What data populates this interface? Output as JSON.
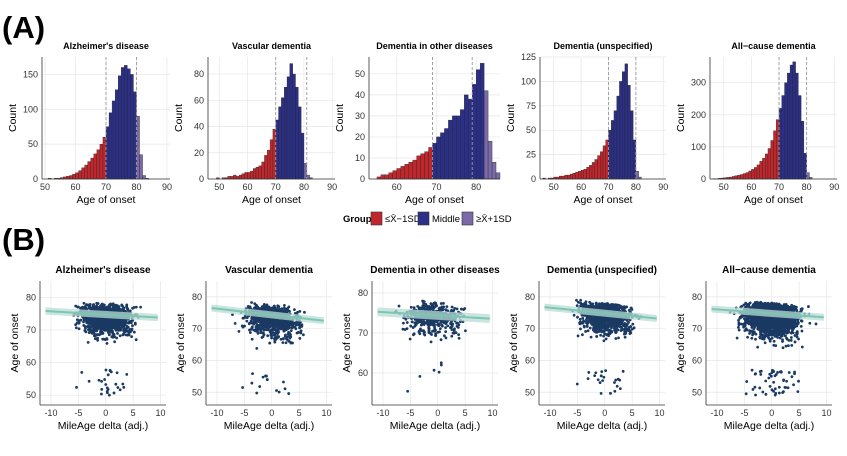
{
  "figure": {
    "panel_a_label": "(A)",
    "panel_b_label": "(B)",
    "legend": {
      "title": "Group",
      "items": [
        {
          "label": "≤X̄−1SD",
          "color": "#c0272d"
        },
        {
          "label": "Middle",
          "color": "#2b2f86"
        },
        {
          "label": "≥X̄+1SD",
          "color": "#7a6aa8"
        }
      ]
    }
  },
  "chart_data": [
    {
      "type": "bar",
      "panel": "A",
      "title": "Alzheimer's disease",
      "xlabel": "Age of onset",
      "ylabel": "Count",
      "xlim": [
        49,
        91
      ],
      "ylim": [
        0,
        175
      ],
      "xticks": [
        50,
        60,
        70,
        80,
        90
      ],
      "yticks": [
        0,
        50,
        100,
        150
      ],
      "bin_width": 1,
      "bin_start": 51,
      "mean_line": 70,
      "sd_line": 80,
      "values": [
        1,
        0,
        1,
        1,
        2,
        3,
        4,
        5,
        7,
        9,
        12,
        16,
        20,
        25,
        30,
        36,
        42,
        50,
        60,
        75,
        95,
        112,
        128,
        148,
        160,
        163,
        158,
        150,
        125,
        90,
        35,
        5,
        1
      ],
      "groups": [
        "low",
        "low",
        "low",
        "low",
        "low",
        "low",
        "low",
        "low",
        "low",
        "low",
        "low",
        "low",
        "low",
        "low",
        "low",
        "low",
        "low",
        "low",
        "low",
        "mid",
        "mid",
        "mid",
        "mid",
        "mid",
        "mid",
        "mid",
        "mid",
        "mid",
        "mid",
        "high",
        "high",
        "high",
        "high"
      ],
      "grid": true
    },
    {
      "type": "bar",
      "panel": "A",
      "title": "Vascular dementia",
      "xlabel": "Age of onset",
      "ylabel": "Count",
      "xlim": [
        46,
        91
      ],
      "ylim": [
        0,
        93
      ],
      "xticks": [
        50,
        60,
        70,
        80,
        90
      ],
      "yticks": [
        0,
        20,
        40,
        60,
        80
      ],
      "bin_width": 1,
      "bin_start": 49,
      "mean_line": 70,
      "sd_line": 81,
      "values": [
        1,
        0,
        1,
        1,
        2,
        2,
        3,
        2,
        3,
        4,
        5,
        5,
        6,
        8,
        9,
        10,
        13,
        18,
        22,
        30,
        38,
        45,
        55,
        62,
        70,
        78,
        88,
        80,
        70,
        55,
        35,
        12,
        3,
        1
      ],
      "groups": [
        "low",
        "low",
        "low",
        "low",
        "low",
        "low",
        "low",
        "low",
        "low",
        "low",
        "low",
        "low",
        "low",
        "low",
        "low",
        "low",
        "low",
        "low",
        "low",
        "low",
        "low",
        "mid",
        "mid",
        "mid",
        "mid",
        "mid",
        "mid",
        "mid",
        "mid",
        "mid",
        "mid",
        "high",
        "high",
        "high"
      ],
      "grid": true
    },
    {
      "type": "bar",
      "panel": "A",
      "title": "Dementia in other diseases",
      "xlabel": "Age of onset",
      "ylabel": "Count",
      "xlim": [
        53,
        86
      ],
      "ylim": [
        0,
        58
      ],
      "xticks": [
        60,
        70,
        80
      ],
      "yticks": [
        0,
        10,
        20,
        30,
        40,
        50
      ],
      "bin_width": 1,
      "bin_start": 55,
      "mean_line": 69,
      "sd_line": 79,
      "values": [
        1,
        2,
        2,
        3,
        4,
        5,
        6,
        7,
        8,
        9,
        11,
        12,
        13,
        15,
        17,
        20,
        22,
        24,
        28,
        30,
        30,
        33,
        40,
        38,
        45,
        52,
        55,
        42,
        18,
        8,
        3
      ],
      "groups": [
        "low",
        "low",
        "low",
        "low",
        "low",
        "low",
        "low",
        "low",
        "low",
        "low",
        "low",
        "low",
        "low",
        "low",
        "mid",
        "mid",
        "mid",
        "mid",
        "mid",
        "mid",
        "mid",
        "mid",
        "mid",
        "mid",
        "mid",
        "mid",
        "mid",
        "high",
        "high",
        "high",
        "high"
      ],
      "grid": true
    },
    {
      "type": "bar",
      "panel": "A",
      "title": "Dementia (unspecified)",
      "xlabel": "Age of onset",
      "ylabel": "Count",
      "xlim": [
        45,
        91
      ],
      "ylim": [
        0,
        125
      ],
      "xticks": [
        50,
        60,
        70,
        80,
        90
      ],
      "yticks": [
        0,
        25,
        50,
        75,
        100,
        125
      ],
      "bin_width": 1,
      "bin_start": 46,
      "mean_line": 70,
      "sd_line": 80,
      "values": [
        1,
        0,
        1,
        1,
        2,
        2,
        3,
        3,
        4,
        4,
        5,
        6,
        7,
        8,
        9,
        10,
        12,
        14,
        17,
        20,
        24,
        28,
        34,
        40,
        50,
        60,
        70,
        85,
        100,
        110,
        118,
        96,
        70,
        40,
        8,
        2
      ],
      "groups": [
        "low",
        "low",
        "low",
        "low",
        "low",
        "low",
        "low",
        "low",
        "low",
        "low",
        "low",
        "low",
        "low",
        "low",
        "low",
        "low",
        "low",
        "low",
        "low",
        "low",
        "low",
        "low",
        "low",
        "low",
        "mid",
        "mid",
        "mid",
        "mid",
        "mid",
        "mid",
        "mid",
        "mid",
        "mid",
        "mid",
        "high",
        "high"
      ],
      "grid": true
    },
    {
      "type": "bar",
      "panel": "A",
      "title": "All−cause dementia",
      "xlabel": "Age of onset",
      "ylabel": "Count",
      "xlim": [
        45,
        91
      ],
      "ylim": [
        0,
        380
      ],
      "xticks": [
        50,
        60,
        70,
        80,
        90
      ],
      "yticks": [
        0,
        100,
        200,
        300
      ],
      "bin_width": 1,
      "bin_start": 46,
      "mean_line": 70,
      "sd_line": 80,
      "values": [
        1,
        1,
        2,
        3,
        4,
        5,
        6,
        8,
        10,
        12,
        14,
        17,
        20,
        25,
        30,
        36,
        44,
        55,
        65,
        78,
        95,
        120,
        150,
        185,
        220,
        260,
        300,
        330,
        355,
        365,
        330,
        260,
        180,
        80,
        20,
        5
      ],
      "groups": [
        "low",
        "low",
        "low",
        "low",
        "low",
        "low",
        "low",
        "low",
        "low",
        "low",
        "low",
        "low",
        "low",
        "low",
        "low",
        "low",
        "low",
        "low",
        "low",
        "low",
        "low",
        "low",
        "low",
        "low",
        "mid",
        "mid",
        "mid",
        "mid",
        "mid",
        "mid",
        "mid",
        "mid",
        "mid",
        "mid",
        "high",
        "high"
      ],
      "grid": true
    },
    {
      "type": "scatter",
      "panel": "B",
      "title": "Alzheimer's disease",
      "xlabel": "MileAge delta (adj.)",
      "ylabel": "Age of onset",
      "xlim": [
        -12,
        11
      ],
      "ylim": [
        47,
        85
      ],
      "xticks": [
        -10,
        -5,
        0,
        5,
        10
      ],
      "yticks": [
        50,
        60,
        70,
        80
      ],
      "n_points": 1400,
      "x_mean": 0,
      "x_sd": 3.6,
      "y_center": 77,
      "y_spread": 6,
      "trend": [
        [
          -11,
          75.8
        ],
        [
          9.5,
          73.8
        ]
      ],
      "grid": true
    },
    {
      "type": "scatter",
      "panel": "B",
      "title": "Vascular dementia",
      "xlabel": "MileAge delta (adj.)",
      "ylabel": "Age of onset",
      "xlim": [
        -12,
        11
      ],
      "ylim": [
        46,
        85
      ],
      "xticks": [
        -10,
        -5,
        0,
        5,
        10
      ],
      "yticks": [
        50,
        60,
        70,
        80
      ],
      "n_points": 850,
      "x_mean": 0,
      "x_sd": 3.8,
      "y_center": 76,
      "y_spread": 7,
      "trend": [
        [
          -11,
          76.5
        ],
        [
          9.5,
          72.5
        ]
      ],
      "grid": true
    },
    {
      "type": "scatter",
      "panel": "B",
      "title": "Dementia in other diseases",
      "xlabel": "MileAge delta (adj.)",
      "ylabel": "Age of onset",
      "xlim": [
        -12,
        11
      ],
      "ylim": [
        52,
        83
      ],
      "xticks": [
        -10,
        -5,
        0,
        5,
        10
      ],
      "yticks": [
        60,
        70,
        80
      ],
      "n_points": 500,
      "x_mean": -1,
      "x_sd": 3.8,
      "y_center": 75,
      "y_spread": 5,
      "trend": [
        [
          -11,
          75.3
        ],
        [
          9.5,
          73.6
        ]
      ],
      "grid": true
    },
    {
      "type": "scatter",
      "panel": "B",
      "title": "Dementia (unspecified)",
      "xlabel": "MileAge delta (adj.)",
      "ylabel": "Age of onset",
      "xlim": [
        -12,
        11
      ],
      "ylim": [
        46,
        85
      ],
      "xticks": [
        -10,
        -5,
        0,
        5,
        10
      ],
      "yticks": [
        50,
        60,
        70,
        80
      ],
      "n_points": 1100,
      "x_mean": 0,
      "x_sd": 3.6,
      "y_center": 77,
      "y_spread": 6,
      "trend": [
        [
          -11,
          76.8
        ],
        [
          9.5,
          73.2
        ]
      ],
      "grid": true
    },
    {
      "type": "scatter",
      "panel": "B",
      "title": "All−cause dementia",
      "xlabel": "MileAge delta (adj.)",
      "ylabel": "Age of onset",
      "xlim": [
        -12,
        11
      ],
      "ylim": [
        46,
        85
      ],
      "xticks": [
        -10,
        -5,
        0,
        5,
        10
      ],
      "yticks": [
        50,
        60,
        70,
        80
      ],
      "n_points": 2600,
      "x_mean": 0,
      "x_sd": 3.7,
      "y_center": 76,
      "y_spread": 6.5,
      "trend": [
        [
          -11,
          76.2
        ],
        [
          9.5,
          73.6
        ]
      ],
      "grid": true
    }
  ]
}
